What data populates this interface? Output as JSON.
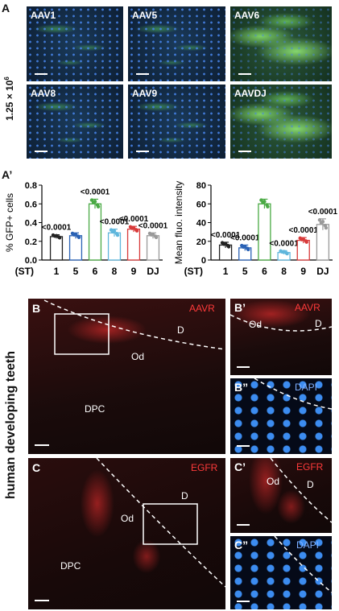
{
  "panel_a": {
    "label": "A",
    "row_label": "1.25 × 10",
    "row_label_exp": "6",
    "images": [
      "AAV1",
      "AAV5",
      "AAV6",
      "AAV8",
      "AAV9",
      "AAVDJ"
    ]
  },
  "panel_a_prime": {
    "label": "A’"
  },
  "chart_data": [
    {
      "type": "bar",
      "categories": [
        "1",
        "5",
        "6",
        "8",
        "9",
        "DJ"
      ],
      "x_prefix": "(ST)",
      "values": [
        0.25,
        0.26,
        0.6,
        0.29,
        0.33,
        0.26
      ],
      "errors": [
        0.02,
        0.03,
        0.05,
        0.04,
        0.03,
        0.03
      ],
      "pvalues": [
        "<0.0001",
        "",
        "<0.0001",
        "<0.0001",
        "<0.0001",
        "<0.0001"
      ],
      "colors": [
        "#222222",
        "#2a62b5",
        "#4aaa44",
        "#5fb6dc",
        "#d83a3a",
        "#9a9a9a"
      ],
      "ylabel": "% GFP+ cells",
      "ylim": [
        0,
        0.8
      ],
      "yticks": [
        "0.0",
        "0.2",
        "0.4",
        "0.6",
        "0.8"
      ]
    },
    {
      "type": "bar",
      "categories": [
        "1",
        "5",
        "6",
        "8",
        "9",
        "DJ"
      ],
      "x_prefix": "(ST)",
      "values": [
        16,
        13,
        60,
        8,
        21,
        38
      ],
      "errors": [
        3,
        3,
        5,
        2,
        3,
        6
      ],
      "pvalues": [
        "<0.0001",
        "<0.0001",
        "",
        "<0.0001",
        "<0.0001",
        "<0.0001"
      ],
      "colors": [
        "#222222",
        "#2a62b5",
        "#4aaa44",
        "#5fb6dc",
        "#d83a3a",
        "#9a9a9a"
      ],
      "ylabel": "Mean fluo. intensity",
      "ylim": [
        0,
        80
      ],
      "yticks": [
        "0",
        "20",
        "40",
        "60",
        "80"
      ]
    }
  ],
  "side_label": "human developing teeth",
  "panel_b": {
    "label": "B",
    "marker": "AAVR",
    "d": "D",
    "od": "Od",
    "dpc": "DPC"
  },
  "panel_b1": {
    "label": "B’",
    "marker": "AAVR",
    "od": "Od",
    "d": "D"
  },
  "panel_b2": {
    "label": "B”",
    "marker": "DAPI"
  },
  "panel_c": {
    "label": "C",
    "marker": "EGFR",
    "d": "D",
    "od": "Od",
    "dpc": "DPC"
  },
  "panel_c1": {
    "label": "C’",
    "marker": "EGFR",
    "od": "Od",
    "d": "D"
  },
  "panel_c2": {
    "label": "C”",
    "marker": "DAPI"
  }
}
